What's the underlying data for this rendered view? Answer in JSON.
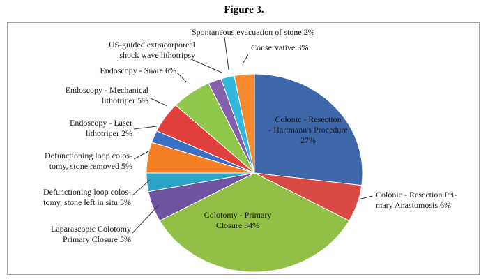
{
  "figure_title": "Figure 3.",
  "chart_data": {
    "type": "pie",
    "title": "Figure 3.",
    "slices": [
      {
        "label": [
          "Colonic - Resection",
          "- Hartmann's Procedure",
          "27%"
        ],
        "value": 27,
        "color": "#3d67a8"
      },
      {
        "label": [
          "Colonic - Resection Pri-",
          "mary Anastomosis 6%"
        ],
        "value": 6,
        "color": "#d94a44"
      },
      {
        "label": [
          "Colotomy - Primary",
          "Closure 34%"
        ],
        "value": 34,
        "color": "#92bf46"
      },
      {
        "label": [
          "Laparascopic Colotomy",
          "Primary Closure 5%"
        ],
        "value": 5,
        "color": "#6e53a1"
      },
      {
        "label": [
          "Defunctioning loop colos-",
          "tomy, stone left in situ 3%"
        ],
        "value": 3,
        "color": "#2ba4c8"
      },
      {
        "label": [
          "Defunctioning loop colos-",
          "tomy, stone removed 5%"
        ],
        "value": 5,
        "color": "#f47f25"
      },
      {
        "label": [
          "Endoscopy - Laser",
          "lithotriper 2%"
        ],
        "value": 2,
        "color": "#3b6fc4"
      },
      {
        "label": [
          "Endoscopy - Mechanical",
          "lithotriper 5%"
        ],
        "value": 5,
        "color": "#e0413c"
      },
      {
        "label": [
          "Endoscopy - Snare 6%"
        ],
        "value": 6,
        "color": "#8fc74a"
      },
      {
        "label": [
          "US-guided extracorporeal",
          "shock wave lithotripsy"
        ],
        "value": 2,
        "color": "#8460ad"
      },
      {
        "label": [
          "Spontaneous evacuation of stone 2%"
        ],
        "value": 2,
        "color": "#32b8dc"
      },
      {
        "label": [
          "Conservative 3%"
        ],
        "value": 3,
        "color": "#f78a2c"
      }
    ]
  }
}
